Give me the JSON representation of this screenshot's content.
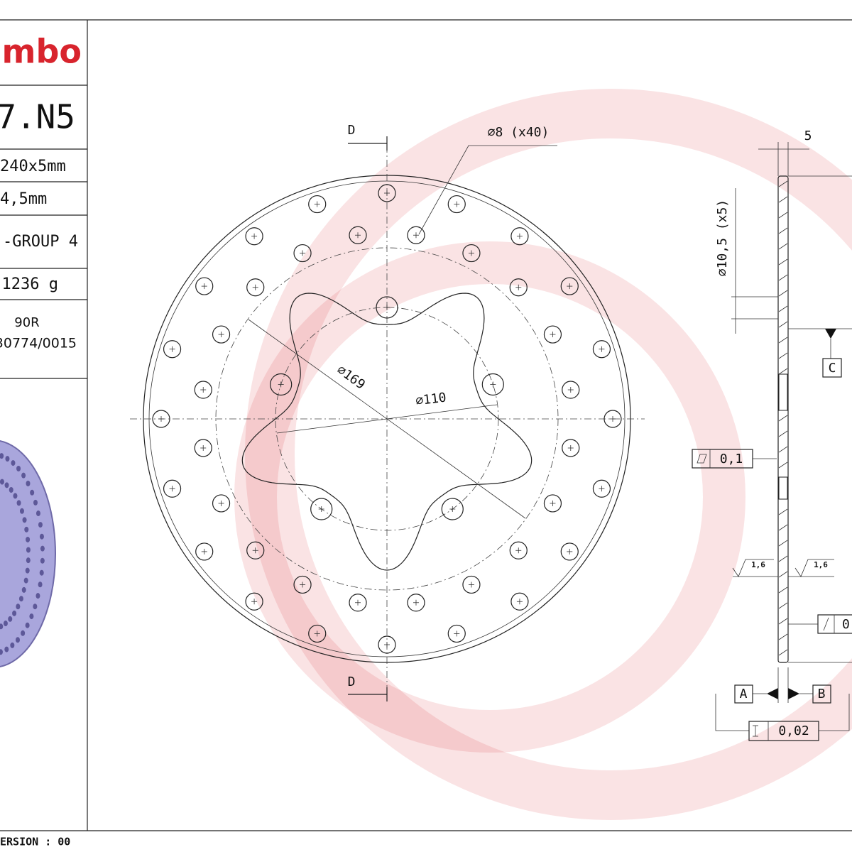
{
  "title_block": {
    "logo": "mbo",
    "code": "7.N5",
    "dimensions": "240x5mm",
    "thickness": "4,5mm",
    "group": "-GROUP 4",
    "weight": "1236 g",
    "approval": "90R",
    "approval_code": "30774/0015",
    "version": "ERSION : 00"
  },
  "front_view": {
    "section_top": "D",
    "section_bottom": "D",
    "holes_note": "⌀8 (x40)",
    "diameter_169": "⌀169",
    "diameter_110": "⌀110"
  },
  "side_view": {
    "thickness": "5",
    "bolt_holes": "⌀10,5 (x5)",
    "datum_c": "C",
    "flatness": "0,1",
    "roughness_left": "1,6",
    "roughness_right": "1,6",
    "runout": "0",
    "datum_a": "A",
    "datum_b": "B",
    "parallelism": "0,02"
  }
}
